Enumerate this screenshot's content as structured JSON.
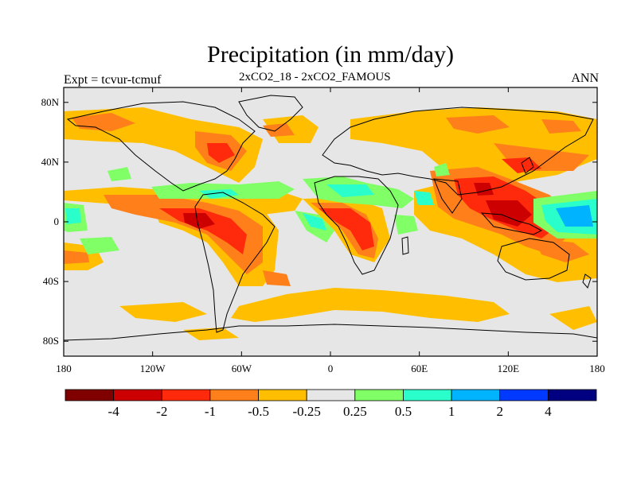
{
  "header": {
    "title": "Precipitation (in mm/day)",
    "experiment": "Expt = tcvur-tcmuf",
    "comparison": "2xCO2_18 - 2xCO2_FAMOUS",
    "season": "ANN"
  },
  "axes": {
    "lat_ticks": [
      {
        "label": "80N",
        "lat": 80
      },
      {
        "label": "40N",
        "lat": 40
      },
      {
        "label": "0",
        "lat": 0
      },
      {
        "label": "40S",
        "lat": -40
      },
      {
        "label": "80S",
        "lat": -80
      }
    ],
    "lon_ticks": [
      {
        "label": "180",
        "lon": -180
      },
      {
        "label": "120W",
        "lon": -120
      },
      {
        "label": "60W",
        "lon": -60
      },
      {
        "label": "0",
        "lon": 0
      },
      {
        "label": "60E",
        "lon": 60
      },
      {
        "label": "120E",
        "lon": 120
      },
      {
        "label": "180",
        "lon": 180
      }
    ],
    "lon_range": [
      -180,
      180
    ],
    "lat_range": [
      -90,
      90
    ]
  },
  "colorbar": {
    "colors": [
      "#800000",
      "#cc0000",
      "#ff2a0c",
      "#ff7f1a",
      "#ffbf00",
      "#e6e6e6",
      "#80ff66",
      "#2affcc",
      "#00b3ff",
      "#0039ff",
      "#000080"
    ],
    "labels": [
      "-4",
      "-2",
      "-1",
      "-0.5",
      "-0.25",
      "0.25",
      "0.5",
      "1",
      "2",
      "4"
    ]
  },
  "colors": {
    "background": "#e6e6e6",
    "frame": "#000000"
  }
}
